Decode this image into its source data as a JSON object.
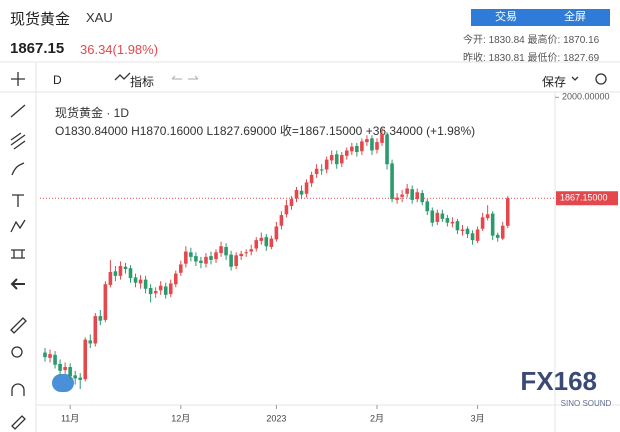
{
  "header": {
    "name": "现货黄金",
    "symbol": "XAU",
    "price": "1867.15",
    "change": "36.34(1.98%)",
    "buttons": [
      "交易",
      "全屏"
    ],
    "stats": [
      [
        "今开:",
        "1830.84",
        "最高价:",
        "1870.16"
      ],
      [
        "昨收:",
        "1830.81",
        "最低价:",
        "1827.69"
      ]
    ]
  },
  "toolbar": {
    "interval": "D",
    "indicators": "指标",
    "save": "保存"
  },
  "legend": {
    "title": "现货黄金 · 1D",
    "ohlc": [
      "O1830.84000",
      "H1870.16000",
      "L1827.69000",
      "收=1867.15000",
      "+36.34000",
      "(+1.98%)"
    ]
  },
  "watermark": {
    "brand": "FX168",
    "sub": "SINO SOUND"
  },
  "chart_data": {
    "type": "candlestick",
    "up_color": "#e4484d",
    "down_color": "#2b9a6c",
    "grid": false,
    "ylim": [
      1595,
      2007
    ],
    "yticks": [
      {
        "value": 2000,
        "label": "2000.00000"
      }
    ],
    "last_price": {
      "value": 1867.15,
      "label": "1867.15000"
    },
    "categories": [
      null,
      null,
      null,
      null,
      null,
      "11月",
      null,
      null,
      null,
      null,
      null,
      null,
      null,
      null,
      null,
      null,
      null,
      null,
      null,
      null,
      null,
      null,
      null,
      null,
      null,
      null,
      null,
      "12月",
      null,
      null,
      null,
      null,
      null,
      null,
      null,
      null,
      null,
      null,
      null,
      null,
      null,
      null,
      null,
      null,
      null,
      null,
      "2023",
      null,
      null,
      null,
      null,
      null,
      null,
      null,
      null,
      null,
      null,
      null,
      null,
      null,
      null,
      null,
      null,
      null,
      null,
      null,
      "2月",
      null,
      null,
      null,
      null,
      null,
      null,
      null,
      null,
      null,
      null,
      null,
      null,
      null,
      null,
      null,
      null,
      null,
      null,
      null,
      "3月",
      null,
      null,
      null,
      null,
      null,
      null
    ],
    "open": [
      1664,
      1657,
      1661,
      1649,
      1641,
      1645,
      1634,
      1631,
      1629,
      1680,
      1676,
      1712,
      1707,
      1753,
      1771,
      1765,
      1777,
      1775,
      1763,
      1755,
      1760,
      1749,
      1742,
      1746,
      1751,
      1741,
      1754,
      1769,
      1781,
      1796,
      1791,
      1785,
      1781,
      1791,
      1787,
      1795,
      1803,
      1793,
      1778,
      1791,
      1795,
      1797,
      1801,
      1811,
      1816,
      1803,
      1813,
      1831,
      1846,
      1857,
      1867,
      1877,
      1873,
      1887,
      1899,
      1905,
      1905,
      1917,
      1925,
      1913,
      1923,
      1929,
      1936,
      1929,
      1941,
      1946,
      1931,
      1940,
      1951,
      1913,
      1865,
      1869,
      1873,
      1879,
      1866,
      1874,
      1863,
      1851,
      1836,
      1847,
      1841,
      1834,
      1837,
      1824,
      1827,
      1821,
      1811,
      1827,
      1841,
      1847,
      1819,
      1814,
      1830.84
    ],
    "high": [
      1670,
      1668,
      1666,
      1655,
      1651,
      1650,
      1640,
      1637,
      1684,
      1688,
      1716,
      1720,
      1758,
      1786,
      1778,
      1784,
      1782,
      1779,
      1768,
      1766,
      1765,
      1754,
      1750,
      1758,
      1756,
      1760,
      1772,
      1785,
      1804,
      1802,
      1796,
      1790,
      1795,
      1797,
      1800,
      1810,
      1808,
      1798,
      1796,
      1798,
      1800,
      1806,
      1816,
      1822,
      1820,
      1818,
      1836,
      1850,
      1865,
      1870,
      1882,
      1884,
      1892,
      1902,
      1912,
      1912,
      1922,
      1930,
      1930,
      1928,
      1934,
      1940,
      1940,
      1946,
      1950,
      1950,
      1946,
      1960,
      1954,
      1918,
      1874,
      1878,
      1886,
      1884,
      1880,
      1878,
      1866,
      1855,
      1852,
      1852,
      1845,
      1842,
      1840,
      1832,
      1830,
      1825,
      1830,
      1848,
      1858,
      1850,
      1822,
      1836,
      1870.16
    ],
    "low": [
      1652,
      1651,
      1643,
      1634,
      1636,
      1628,
      1622,
      1616,
      1626,
      1670,
      1672,
      1700,
      1704,
      1750,
      1758,
      1760,
      1768,
      1756,
      1750,
      1748,
      1742,
      1730,
      1736,
      1740,
      1735,
      1737,
      1750,
      1765,
      1776,
      1784,
      1778,
      1775,
      1776,
      1780,
      1782,
      1790,
      1786,
      1772,
      1774,
      1786,
      1790,
      1792,
      1797,
      1806,
      1798,
      1800,
      1810,
      1826,
      1842,
      1852,
      1862,
      1866,
      1868,
      1882,
      1894,
      1898,
      1900,
      1912,
      1906,
      1908,
      1918,
      1924,
      1922,
      1924,
      1936,
      1924,
      1926,
      1936,
      1905,
      1862,
      1860,
      1862,
      1868,
      1860,
      1862,
      1858,
      1845,
      1830,
      1832,
      1836,
      1830,
      1829,
      1820,
      1818,
      1815,
      1806,
      1808,
      1824,
      1838,
      1812,
      1810,
      1812,
      1827.69
    ],
    "close": [
      1658,
      1662,
      1648,
      1640,
      1645,
      1633,
      1630,
      1628,
      1681,
      1676,
      1712,
      1706,
      1754,
      1770,
      1765,
      1778,
      1774,
      1762,
      1756,
      1760,
      1748,
      1741,
      1745,
      1752,
      1740,
      1755,
      1768,
      1780,
      1797,
      1790,
      1784,
      1782,
      1790,
      1786,
      1796,
      1804,
      1792,
      1777,
      1792,
      1794,
      1796,
      1800,
      1812,
      1815,
      1804,
      1814,
      1830,
      1845,
      1858,
      1866,
      1878,
      1872,
      1888,
      1898,
      1906,
      1904,
      1918,
      1924,
      1912,
      1924,
      1930,
      1935,
      1928,
      1942,
      1945,
      1930,
      1941,
      1952,
      1912,
      1866,
      1868,
      1872,
      1880,
      1865,
      1875,
      1862,
      1850,
      1835,
      1848,
      1840,
      1835,
      1836,
      1825,
      1826,
      1820,
      1812,
      1826,
      1842,
      1846,
      1818,
      1815,
      1831,
      1867.15
    ]
  }
}
